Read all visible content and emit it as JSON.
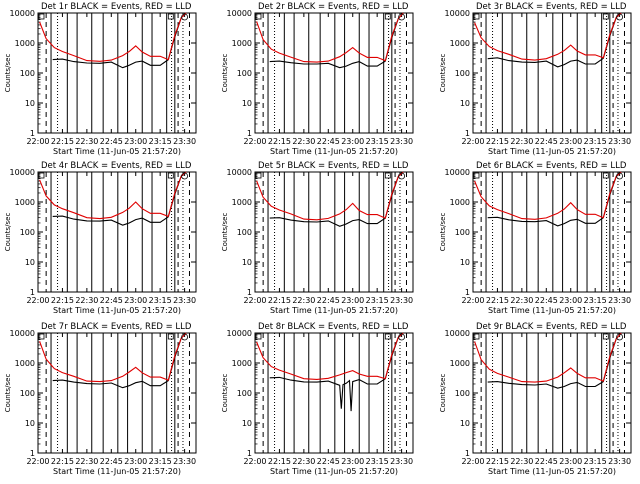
{
  "figure": {
    "x_title": "Start Time (11-Jun-05 21:57:20)",
    "y_title": "Counts/sec",
    "x_ticks": [
      "22:00",
      "22:15",
      "22:30",
      "22:45",
      "23:00",
      "23:15",
      "23:30"
    ],
    "y_ticks": [
      "1",
      "10",
      "100",
      "1000",
      "10000"
    ]
  },
  "chart_data": [
    {
      "type": "line",
      "title": "Det 1r BLACK = Events, RED = LLD",
      "xlabel": "Start Time (11-Jun-05 21:57:20)",
      "ylabel": "Counts/sec",
      "x_range": [
        "22:00",
        "23:37"
      ],
      "ylim": [
        1,
        10000
      ],
      "y_scale": "log",
      "series": [
        {
          "name": "Events",
          "color": "#000000",
          "x": [
            "22:09",
            "22:15",
            "22:22",
            "22:30",
            "22:38",
            "22:45",
            "22:52",
            "22:56",
            "23:00",
            "23:04",
            "23:09",
            "23:15",
            "23:20",
            "23:24",
            "23:28",
            "23:31"
          ],
          "values": [
            280,
            290,
            240,
            215,
            210,
            230,
            150,
            180,
            230,
            250,
            180,
            180,
            280,
            1600,
            7000,
            11000
          ]
        },
        {
          "name": "LLD",
          "color": "#e00000",
          "x": [
            "22:01",
            "22:05",
            "22:10",
            "22:15",
            "22:22",
            "22:30",
            "22:38",
            "22:45",
            "22:52",
            "22:56",
            "23:00",
            "23:04",
            "23:09",
            "23:15",
            "23:20",
            "23:24",
            "23:28",
            "23:31"
          ],
          "values": [
            5000,
            1400,
            700,
            520,
            380,
            260,
            245,
            270,
            380,
            520,
            800,
            500,
            360,
            360,
            280,
            1800,
            7000,
            11000
          ]
        }
      ]
    },
    {
      "type": "line",
      "title": "Det 2r BLACK = Events, RED = LLD",
      "xlabel": "Start Time (11-Jun-05 21:57:20)",
      "ylabel": "Counts/sec",
      "x_range": [
        "22:00",
        "23:37"
      ],
      "ylim": [
        1,
        10000
      ],
      "y_scale": "log",
      "series": [
        {
          "name": "Events",
          "color": "#000000",
          "x": [
            "22:09",
            "22:15",
            "22:22",
            "22:30",
            "22:38",
            "22:45",
            "22:52",
            "22:56",
            "23:00",
            "23:04",
            "23:09",
            "23:15",
            "23:20",
            "23:24",
            "23:28",
            "23:31"
          ],
          "values": [
            240,
            250,
            220,
            200,
            200,
            210,
            150,
            170,
            210,
            240,
            170,
            170,
            250,
            1500,
            6500,
            10500
          ]
        },
        {
          "name": "LLD",
          "color": "#e00000",
          "x": [
            "22:01",
            "22:05",
            "22:10",
            "22:15",
            "22:22",
            "22:30",
            "22:38",
            "22:45",
            "22:52",
            "22:56",
            "23:00",
            "23:04",
            "23:09",
            "23:15",
            "23:20",
            "23:24",
            "23:28",
            "23:31"
          ],
          "values": [
            5200,
            1300,
            620,
            460,
            340,
            240,
            230,
            250,
            350,
            480,
            700,
            460,
            330,
            330,
            260,
            1700,
            6500,
            10500
          ]
        }
      ]
    },
    {
      "type": "line",
      "title": "Det 3r BLACK = Events, RED = LLD",
      "xlabel": "Start Time (11-Jun-05 21:57:20)",
      "ylabel": "Counts/sec",
      "x_range": [
        "22:00",
        "23:37"
      ],
      "ylim": [
        1,
        10000
      ],
      "y_scale": "log",
      "series": [
        {
          "name": "Events",
          "color": "#000000",
          "x": [
            "22:09",
            "22:15",
            "22:22",
            "22:30",
            "22:38",
            "22:45",
            "22:52",
            "22:56",
            "23:00",
            "23:04",
            "23:09",
            "23:15",
            "23:20",
            "23:24",
            "23:28",
            "23:31"
          ],
          "values": [
            300,
            320,
            260,
            230,
            225,
            250,
            160,
            190,
            250,
            270,
            200,
            200,
            310,
            1700,
            7200,
            11000
          ]
        },
        {
          "name": "LLD",
          "color": "#e00000",
          "x": [
            "22:01",
            "22:05",
            "22:10",
            "22:15",
            "22:22",
            "22:30",
            "22:38",
            "22:45",
            "22:52",
            "22:56",
            "23:00",
            "23:04",
            "23:09",
            "23:15",
            "23:20",
            "23:24",
            "23:28",
            "23:31"
          ],
          "values": [
            4800,
            1500,
            760,
            560,
            420,
            290,
            270,
            300,
            420,
            560,
            850,
            540,
            400,
            400,
            320,
            1900,
            7200,
            11000
          ]
        }
      ]
    },
    {
      "type": "line",
      "title": "Det 4r BLACK = Events, RED = LLD",
      "xlabel": "Start Time (11-Jun-05 21:57:20)",
      "ylabel": "Counts/sec",
      "x_range": [
        "22:00",
        "23:37"
      ],
      "ylim": [
        1,
        10000
      ],
      "y_scale": "log",
      "series": [
        {
          "name": "Events",
          "color": "#000000",
          "x": [
            "22:09",
            "22:15",
            "22:22",
            "22:30",
            "22:38",
            "22:45",
            "22:52",
            "22:56",
            "23:00",
            "23:04",
            "23:09",
            "23:15",
            "23:20",
            "23:24",
            "23:28",
            "23:31"
          ],
          "values": [
            330,
            340,
            270,
            235,
            230,
            250,
            170,
            200,
            260,
            290,
            210,
            210,
            320,
            1800,
            7400,
            11500
          ]
        },
        {
          "name": "LLD",
          "color": "#e00000",
          "x": [
            "22:01",
            "22:05",
            "22:10",
            "22:15",
            "22:22",
            "22:30",
            "22:38",
            "22:45",
            "22:52",
            "22:56",
            "23:00",
            "23:04",
            "23:09",
            "23:15",
            "23:20",
            "23:24",
            "23:28",
            "23:31"
          ],
          "values": [
            5500,
            1600,
            800,
            600,
            440,
            300,
            280,
            310,
            450,
            620,
            1000,
            600,
            420,
            420,
            330,
            2000,
            7400,
            11500
          ]
        }
      ]
    },
    {
      "type": "line",
      "title": "Det 5r BLACK = Events, RED = LLD",
      "xlabel": "Start Time (11-Jun-05 21:57:20)",
      "ylabel": "Counts/sec",
      "x_range": [
        "22:00",
        "23:37"
      ],
      "ylim": [
        1,
        10000
      ],
      "y_scale": "log",
      "series": [
        {
          "name": "Events",
          "color": "#000000",
          "x": [
            "22:09",
            "22:15",
            "22:22",
            "22:30",
            "22:38",
            "22:45",
            "22:52",
            "22:56",
            "23:00",
            "23:04",
            "23:09",
            "23:15",
            "23:20",
            "23:24",
            "23:28",
            "23:31"
          ],
          "values": [
            290,
            300,
            250,
            220,
            215,
            235,
            155,
            185,
            240,
            260,
            190,
            190,
            290,
            1650,
            7100,
            11000
          ]
        },
        {
          "name": "LLD",
          "color": "#e00000",
          "x": [
            "22:01",
            "22:05",
            "22:10",
            "22:15",
            "22:22",
            "22:30",
            "22:38",
            "22:45",
            "22:52",
            "22:56",
            "23:00",
            "23:04",
            "23:09",
            "23:15",
            "23:20",
            "23:24",
            "23:28",
            "23:31"
          ],
          "values": [
            5100,
            1450,
            720,
            540,
            400,
            270,
            255,
            285,
            400,
            560,
            900,
            520,
            380,
            380,
            290,
            1850,
            7100,
            11000
          ]
        }
      ]
    },
    {
      "type": "line",
      "title": "Det 6r BLACK = Events, RED = LLD",
      "xlabel": "Start Time (11-Jun-05 21:57:20)",
      "ylabel": "Counts/sec",
      "x_range": [
        "22:00",
        "23:37"
      ],
      "ylim": [
        1,
        10000
      ],
      "y_scale": "log",
      "series": [
        {
          "name": "Events",
          "color": "#000000",
          "x": [
            "22:09",
            "22:15",
            "22:22",
            "22:30",
            "22:38",
            "22:45",
            "22:52",
            "22:56",
            "23:00",
            "23:04",
            "23:09",
            "23:15",
            "23:20",
            "23:24",
            "23:28",
            "23:31"
          ],
          "values": [
            300,
            310,
            255,
            225,
            220,
            240,
            160,
            190,
            245,
            265,
            195,
            195,
            300,
            1700,
            7200,
            11000
          ]
        },
        {
          "name": "LLD",
          "color": "#e00000",
          "x": [
            "22:01",
            "22:05",
            "22:10",
            "22:15",
            "22:22",
            "22:30",
            "22:38",
            "22:45",
            "22:52",
            "22:56",
            "23:00",
            "23:04",
            "23:09",
            "23:15",
            "23:20",
            "23:24",
            "23:28",
            "23:31"
          ],
          "values": [
            5000,
            1500,
            740,
            560,
            410,
            280,
            265,
            295,
            420,
            580,
            950,
            560,
            390,
            390,
            300,
            1900,
            7200,
            11000
          ]
        }
      ]
    },
    {
      "type": "line",
      "title": "Det 7r BLACK = Events, RED = LLD",
      "xlabel": "Start Time (11-Jun-05 21:57:20)",
      "ylabel": "Counts/sec",
      "x_range": [
        "22:00",
        "23:37"
      ],
      "ylim": [
        1,
        10000
      ],
      "y_scale": "log",
      "series": [
        {
          "name": "Events",
          "color": "#000000",
          "x": [
            "22:09",
            "22:15",
            "22:22",
            "22:30",
            "22:38",
            "22:45",
            "22:52",
            "22:56",
            "23:00",
            "23:04",
            "23:09",
            "23:15",
            "23:20",
            "23:24",
            "23:28",
            "23:31"
          ],
          "values": [
            260,
            270,
            230,
            205,
            200,
            215,
            150,
            175,
            220,
            245,
            175,
            175,
            260,
            1550,
            6800,
            10500
          ]
        },
        {
          "name": "LLD",
          "color": "#e00000",
          "x": [
            "22:01",
            "22:05",
            "22:10",
            "22:15",
            "22:22",
            "22:30",
            "22:38",
            "22:45",
            "22:52",
            "22:56",
            "23:00",
            "23:04",
            "23:09",
            "23:15",
            "23:20",
            "23:24",
            "23:28",
            "23:31"
          ],
          "values": [
            5300,
            1350,
            650,
            480,
            360,
            250,
            240,
            260,
            360,
            500,
            720,
            470,
            340,
            340,
            270,
            1750,
            6800,
            10500
          ]
        }
      ]
    },
    {
      "type": "line",
      "title": "Det 8r BLACK = Events, RED = LLD",
      "xlabel": "Start Time (11-Jun-05 21:57:20)",
      "ylabel": "Counts/sec",
      "x_range": [
        "22:00",
        "23:37"
      ],
      "ylim": [
        1,
        10000
      ],
      "y_scale": "log",
      "series": [
        {
          "name": "Events",
          "color": "#000000",
          "x": [
            "22:09",
            "22:15",
            "22:22",
            "22:30",
            "22:38",
            "22:45",
            "22:52",
            "22:53",
            "22:54",
            "22:56",
            "22:58",
            "22:59",
            "23:00",
            "23:04",
            "23:09",
            "23:15",
            "23:20",
            "23:24",
            "23:28",
            "23:31"
          ],
          "values": [
            320,
            330,
            270,
            235,
            230,
            250,
            180,
            30,
            190,
            210,
            260,
            25,
            240,
            280,
            200,
            200,
            300,
            1700,
            7200,
            11000
          ]
        },
        {
          "name": "LLD",
          "color": "#e00000",
          "x": [
            "22:01",
            "22:05",
            "22:10",
            "22:15",
            "22:22",
            "22:30",
            "22:38",
            "22:45",
            "22:52",
            "22:56",
            "23:00",
            "23:04",
            "23:09",
            "23:15",
            "23:20",
            "23:24",
            "23:28",
            "23:31"
          ],
          "values": [
            5000,
            1500,
            760,
            580,
            430,
            300,
            285,
            310,
            400,
            480,
            560,
            430,
            360,
            360,
            300,
            1900,
            7200,
            11000
          ]
        }
      ]
    },
    {
      "type": "line",
      "title": "Det 9r BLACK = Events, RED = LLD",
      "xlabel": "Start Time (11-Jun-05 21:57:20)",
      "ylabel": "Counts/sec",
      "x_range": [
        "22:00",
        "23:37"
      ],
      "ylim": [
        1,
        10000
      ],
      "y_scale": "log",
      "series": [
        {
          "name": "Events",
          "color": "#000000",
          "x": [
            "22:09",
            "22:15",
            "22:22",
            "22:30",
            "22:38",
            "22:45",
            "22:52",
            "22:56",
            "23:00",
            "23:04",
            "23:09",
            "23:15",
            "23:20",
            "23:24",
            "23:28",
            "23:31"
          ],
          "values": [
            230,
            240,
            210,
            190,
            185,
            200,
            145,
            165,
            205,
            225,
            165,
            165,
            240,
            1450,
            6500,
            10000
          ]
        },
        {
          "name": "LLD",
          "color": "#e00000",
          "x": [
            "22:01",
            "22:05",
            "22:10",
            "22:15",
            "22:22",
            "22:30",
            "22:38",
            "22:45",
            "22:52",
            "22:56",
            "23:00",
            "23:04",
            "23:09",
            "23:15",
            "23:20",
            "23:24",
            "23:28",
            "23:31"
          ],
          "values": [
            5200,
            1300,
            620,
            450,
            340,
            240,
            230,
            250,
            340,
            470,
            680,
            450,
            320,
            320,
            250,
            1650,
            6500,
            10000
          ]
        }
      ]
    }
  ]
}
